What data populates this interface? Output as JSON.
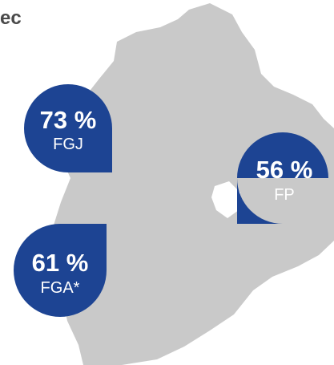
{
  "title": "ec",
  "bubbles": [
    {
      "value": "73 %",
      "label": "FGJ"
    },
    {
      "value": "56 %",
      "label": "FP"
    },
    {
      "value": "61 %",
      "label": "FGA*"
    }
  ]
}
